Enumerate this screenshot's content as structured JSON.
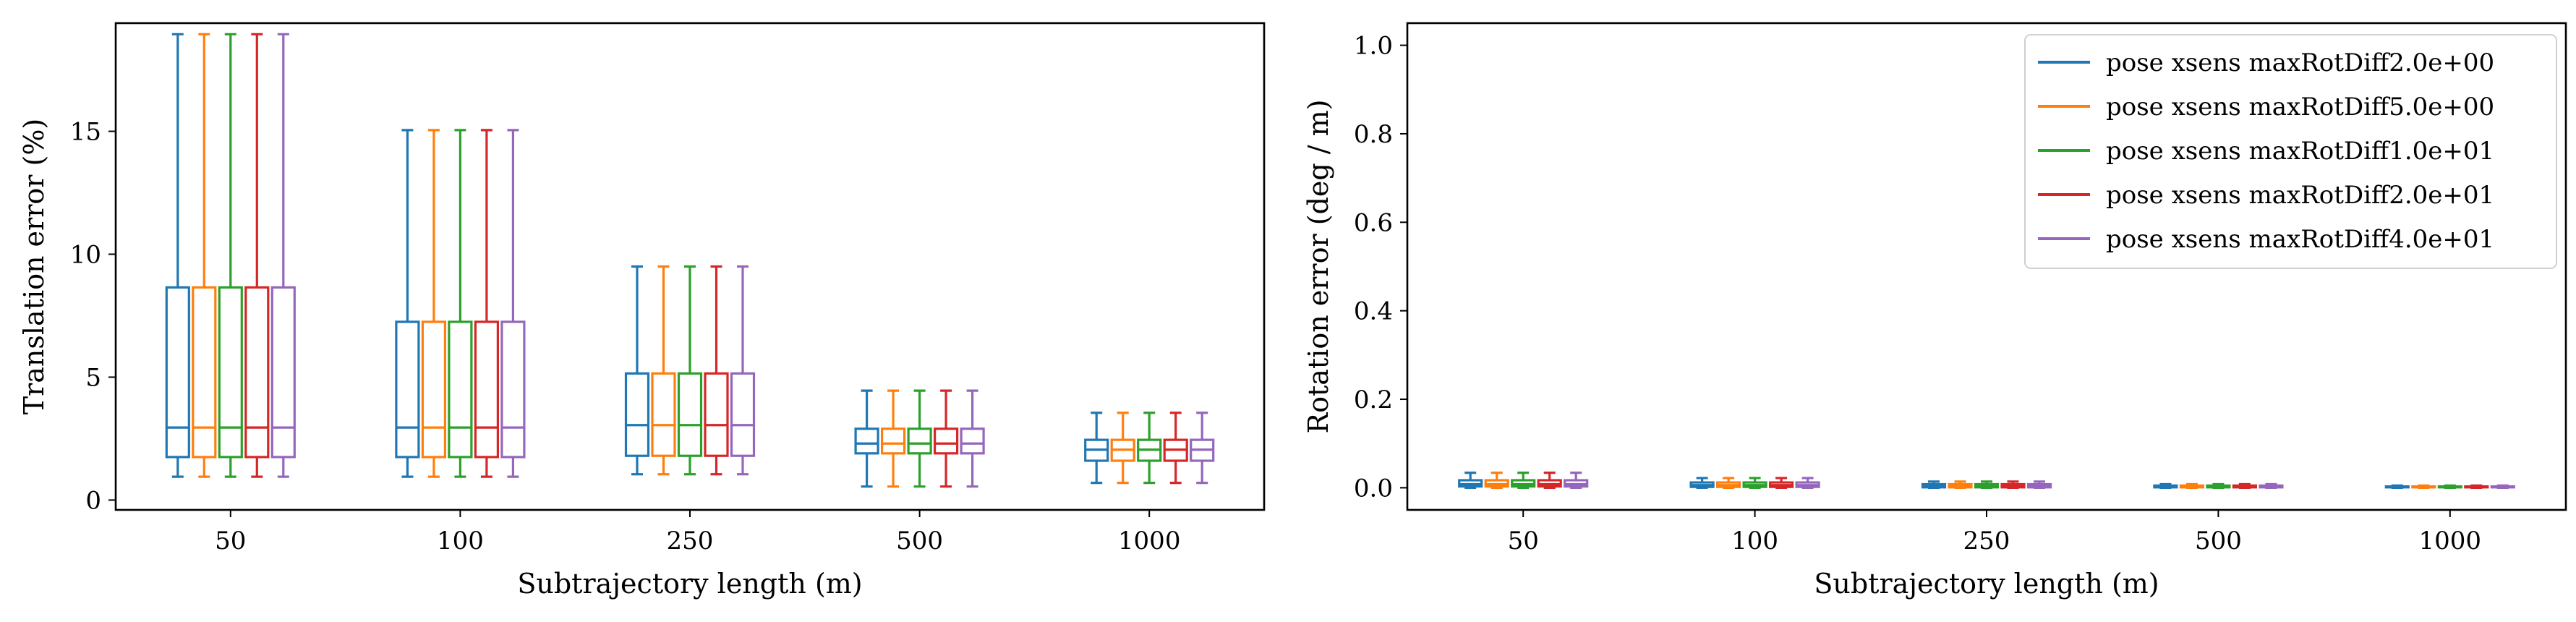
{
  "chart_data": [
    {
      "type": "box",
      "title": "",
      "xlabel": "Subtrajectory length (m)",
      "ylabel": "Translation error (%)",
      "categories": [
        "50",
        "100",
        "250",
        "500",
        "1000"
      ],
      "ylim": [
        -0.4,
        19.4
      ],
      "yticks": [
        0,
        5,
        10,
        15
      ],
      "grid": false,
      "series": [
        {
          "name": "pose xsens maxRotDiff2.0e+00",
          "color": "#1f77b4",
          "boxes": [
            {
              "whislo": 0.95,
              "q1": 1.75,
              "med": 2.95,
              "q3": 8.65,
              "whishi": 18.95
            },
            {
              "whislo": 0.95,
              "q1": 1.75,
              "med": 2.95,
              "q3": 7.25,
              "whishi": 15.05
            },
            {
              "whislo": 1.05,
              "q1": 1.8,
              "med": 3.05,
              "q3": 5.15,
              "whishi": 9.5
            },
            {
              "whislo": 0.55,
              "q1": 1.9,
              "med": 2.3,
              "q3": 2.9,
              "whishi": 4.45
            },
            {
              "whislo": 0.7,
              "q1": 1.6,
              "med": 2.05,
              "q3": 2.45,
              "whishi": 3.55
            }
          ]
        },
        {
          "name": "pose xsens maxRotDiff5.0e+00",
          "color": "#ff7f0e",
          "boxes": [
            {
              "whislo": 0.95,
              "q1": 1.75,
              "med": 2.95,
              "q3": 8.65,
              "whishi": 18.95
            },
            {
              "whislo": 0.95,
              "q1": 1.75,
              "med": 2.95,
              "q3": 7.25,
              "whishi": 15.05
            },
            {
              "whislo": 1.05,
              "q1": 1.8,
              "med": 3.05,
              "q3": 5.15,
              "whishi": 9.5
            },
            {
              "whislo": 0.55,
              "q1": 1.9,
              "med": 2.3,
              "q3": 2.9,
              "whishi": 4.45
            },
            {
              "whislo": 0.7,
              "q1": 1.6,
              "med": 2.05,
              "q3": 2.45,
              "whishi": 3.55
            }
          ]
        },
        {
          "name": "pose xsens maxRotDiff1.0e+01",
          "color": "#2ca02c",
          "boxes": [
            {
              "whislo": 0.95,
              "q1": 1.75,
              "med": 2.95,
              "q3": 8.65,
              "whishi": 18.95
            },
            {
              "whislo": 0.95,
              "q1": 1.75,
              "med": 2.95,
              "q3": 7.25,
              "whishi": 15.05
            },
            {
              "whislo": 1.05,
              "q1": 1.8,
              "med": 3.05,
              "q3": 5.15,
              "whishi": 9.5
            },
            {
              "whislo": 0.55,
              "q1": 1.9,
              "med": 2.3,
              "q3": 2.9,
              "whishi": 4.45
            },
            {
              "whislo": 0.7,
              "q1": 1.6,
              "med": 2.05,
              "q3": 2.45,
              "whishi": 3.55
            }
          ]
        },
        {
          "name": "pose xsens maxRotDiff2.0e+01",
          "color": "#d62728",
          "boxes": [
            {
              "whislo": 0.95,
              "q1": 1.75,
              "med": 2.95,
              "q3": 8.65,
              "whishi": 18.95
            },
            {
              "whislo": 0.95,
              "q1": 1.75,
              "med": 2.95,
              "q3": 7.25,
              "whishi": 15.05
            },
            {
              "whislo": 1.05,
              "q1": 1.8,
              "med": 3.05,
              "q3": 5.15,
              "whishi": 9.5
            },
            {
              "whislo": 0.55,
              "q1": 1.9,
              "med": 2.3,
              "q3": 2.9,
              "whishi": 4.45
            },
            {
              "whislo": 0.7,
              "q1": 1.6,
              "med": 2.05,
              "q3": 2.45,
              "whishi": 3.55
            }
          ]
        },
        {
          "name": "pose xsens maxRotDiff4.0e+01",
          "color": "#9467bd",
          "boxes": [
            {
              "whislo": 0.95,
              "q1": 1.75,
              "med": 2.95,
              "q3": 8.65,
              "whishi": 18.95
            },
            {
              "whislo": 0.95,
              "q1": 1.75,
              "med": 2.95,
              "q3": 7.25,
              "whishi": 15.05
            },
            {
              "whislo": 1.05,
              "q1": 1.8,
              "med": 3.05,
              "q3": 5.15,
              "whishi": 9.5
            },
            {
              "whislo": 0.55,
              "q1": 1.9,
              "med": 2.3,
              "q3": 2.9,
              "whishi": 4.45
            },
            {
              "whislo": 0.7,
              "q1": 1.6,
              "med": 2.05,
              "q3": 2.45,
              "whishi": 3.55
            }
          ]
        }
      ]
    },
    {
      "type": "box",
      "title": "",
      "xlabel": "Subtrajectory length (m)",
      "ylabel": "Rotation error (deg / m)",
      "categories": [
        "50",
        "100",
        "250",
        "500",
        "1000"
      ],
      "ylim": [
        -0.05,
        1.05
      ],
      "yticks": [
        0.0,
        0.2,
        0.4,
        0.6,
        0.8,
        1.0
      ],
      "ytick_labels": [
        "0.0",
        "0.2",
        "0.4",
        "0.6",
        "0.8",
        "1.0"
      ],
      "grid": false,
      "legend": "top-right",
      "series": [
        {
          "name": "pose xsens maxRotDiff2.0e+00",
          "color": "#1f77b4",
          "boxes": [
            {
              "whislo": 0.0,
              "q1": 0.003,
              "med": 0.008,
              "q3": 0.017,
              "whishi": 0.034
            },
            {
              "whislo": 0.0,
              "q1": 0.002,
              "med": 0.006,
              "q3": 0.012,
              "whishi": 0.022
            },
            {
              "whislo": 0.0,
              "q1": 0.001,
              "med": 0.004,
              "q3": 0.008,
              "whishi": 0.014
            },
            {
              "whislo": 0.0,
              "q1": 0.001,
              "med": 0.003,
              "q3": 0.005,
              "whishi": 0.008
            },
            {
              "whislo": 0.0,
              "q1": 0.001,
              "med": 0.002,
              "q3": 0.003,
              "whishi": 0.005
            }
          ]
        },
        {
          "name": "pose xsens maxRotDiff5.0e+00",
          "color": "#ff7f0e",
          "boxes": [
            {
              "whislo": 0.0,
              "q1": 0.003,
              "med": 0.008,
              "q3": 0.017,
              "whishi": 0.034
            },
            {
              "whislo": 0.0,
              "q1": 0.002,
              "med": 0.006,
              "q3": 0.012,
              "whishi": 0.022
            },
            {
              "whislo": 0.0,
              "q1": 0.001,
              "med": 0.004,
              "q3": 0.008,
              "whishi": 0.014
            },
            {
              "whislo": 0.0,
              "q1": 0.001,
              "med": 0.003,
              "q3": 0.005,
              "whishi": 0.008
            },
            {
              "whislo": 0.0,
              "q1": 0.001,
              "med": 0.002,
              "q3": 0.003,
              "whishi": 0.005
            }
          ]
        },
        {
          "name": "pose xsens maxRotDiff1.0e+01",
          "color": "#2ca02c",
          "boxes": [
            {
              "whislo": 0.0,
              "q1": 0.003,
              "med": 0.008,
              "q3": 0.017,
              "whishi": 0.034
            },
            {
              "whislo": 0.0,
              "q1": 0.002,
              "med": 0.006,
              "q3": 0.012,
              "whishi": 0.022
            },
            {
              "whislo": 0.0,
              "q1": 0.001,
              "med": 0.004,
              "q3": 0.008,
              "whishi": 0.014
            },
            {
              "whislo": 0.0,
              "q1": 0.001,
              "med": 0.003,
              "q3": 0.005,
              "whishi": 0.008
            },
            {
              "whislo": 0.0,
              "q1": 0.001,
              "med": 0.002,
              "q3": 0.003,
              "whishi": 0.005
            }
          ]
        },
        {
          "name": "pose xsens maxRotDiff2.0e+01",
          "color": "#d62728",
          "boxes": [
            {
              "whislo": 0.0,
              "q1": 0.003,
              "med": 0.008,
              "q3": 0.017,
              "whishi": 0.034
            },
            {
              "whislo": 0.0,
              "q1": 0.002,
              "med": 0.006,
              "q3": 0.012,
              "whishi": 0.022
            },
            {
              "whislo": 0.0,
              "q1": 0.001,
              "med": 0.004,
              "q3": 0.008,
              "whishi": 0.014
            },
            {
              "whislo": 0.0,
              "q1": 0.001,
              "med": 0.003,
              "q3": 0.005,
              "whishi": 0.008
            },
            {
              "whislo": 0.0,
              "q1": 0.001,
              "med": 0.002,
              "q3": 0.003,
              "whishi": 0.005
            }
          ]
        },
        {
          "name": "pose xsens maxRotDiff4.0e+01",
          "color": "#9467bd",
          "boxes": [
            {
              "whislo": 0.0,
              "q1": 0.003,
              "med": 0.008,
              "q3": 0.017,
              "whishi": 0.034
            },
            {
              "whislo": 0.0,
              "q1": 0.002,
              "med": 0.006,
              "q3": 0.012,
              "whishi": 0.022
            },
            {
              "whislo": 0.0,
              "q1": 0.001,
              "med": 0.004,
              "q3": 0.008,
              "whishi": 0.014
            },
            {
              "whislo": 0.0,
              "q1": 0.001,
              "med": 0.003,
              "q3": 0.005,
              "whishi": 0.008
            },
            {
              "whislo": 0.0,
              "q1": 0.001,
              "med": 0.002,
              "q3": 0.003,
              "whishi": 0.005
            }
          ]
        }
      ]
    }
  ]
}
